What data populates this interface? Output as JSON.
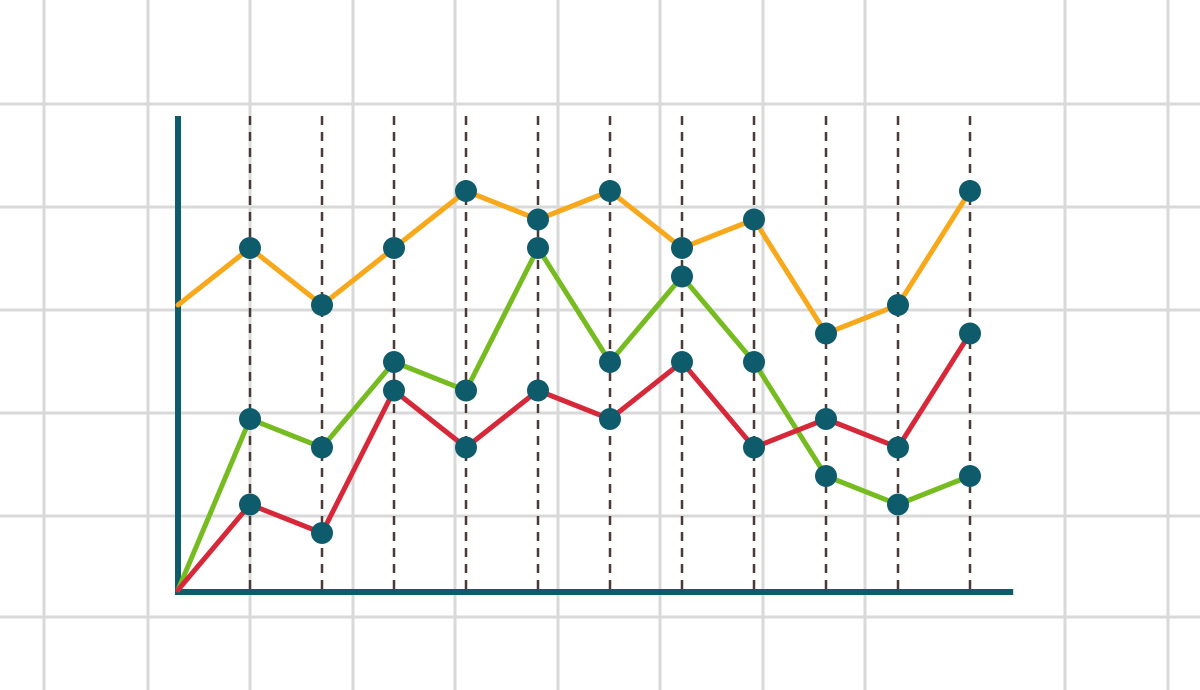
{
  "colors": {
    "background": "#ffffff",
    "grid": "#d9d9d9",
    "axis": "#0e5b6b",
    "marker": "#0e5b6b",
    "guide": "#4a3a35"
  },
  "chart_data": {
    "type": "line",
    "title": "",
    "xlabel": "",
    "ylabel": "",
    "x": [
      0,
      1,
      2,
      3,
      4,
      5,
      6,
      7,
      8,
      9,
      10,
      11
    ],
    "xlim": [
      0,
      11.6
    ],
    "ylim": [
      0,
      14
    ],
    "grid": true,
    "legend": "none",
    "tick_labels": false,
    "vertical_guides": [
      1,
      2,
      3,
      4,
      5,
      6,
      7,
      8,
      9,
      10,
      11
    ],
    "series": [
      {
        "color": "#f7a81b",
        "values": [
          10,
          12,
          10,
          12,
          14,
          13,
          14,
          12,
          13,
          9,
          10,
          14
        ]
      },
      {
        "color": "#76bc21",
        "values": [
          0,
          6,
          5,
          8,
          7,
          12,
          8,
          11,
          8,
          4,
          3,
          4
        ]
      },
      {
        "color": "#d7283a",
        "values": [
          0,
          3,
          2,
          7,
          5,
          7,
          6,
          8,
          5,
          6,
          5,
          9
        ]
      }
    ]
  }
}
